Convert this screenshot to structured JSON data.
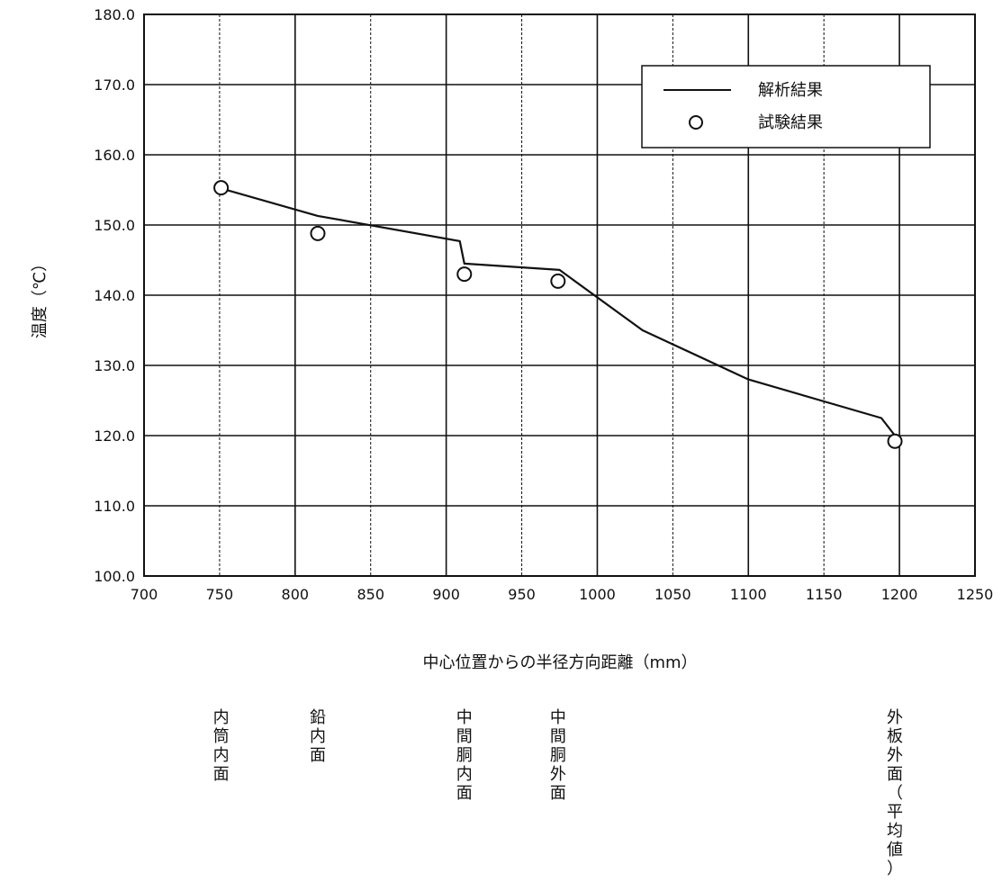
{
  "chart_data": {
    "type": "line",
    "ylabel": "温度（℃）",
    "xlabel": "中心位置からの半径方向距離（mm）",
    "xlim": [
      700,
      1250
    ],
    "ylim": [
      100.0,
      180.0
    ],
    "x_ticks": [
      "700",
      "750",
      "800",
      "850",
      "900",
      "950",
      "1000",
      "1050",
      "1100",
      "1150",
      "1200",
      "1250"
    ],
    "y_ticks": [
      "100.0",
      "110.0",
      "120.0",
      "130.0",
      "140.0",
      "150.0",
      "160.0",
      "170.0",
      "180.0"
    ],
    "grid": true,
    "legend_position": "top-right",
    "series": [
      {
        "name": "解析結果",
        "style": "line",
        "x": [
          751,
          815,
          909,
          912,
          975,
          1030,
          1100,
          1188,
          1197
        ],
        "y": [
          155.2,
          151.3,
          147.7,
          144.5,
          143.6,
          135.0,
          128.0,
          122.5,
          120.0
        ]
      },
      {
        "name": "試験結果",
        "style": "circle",
        "x": [
          751,
          815,
          912,
          974,
          1197
        ],
        "y": [
          155.3,
          148.8,
          143.0,
          142.0,
          119.2
        ]
      }
    ],
    "position_labels": [
      {
        "x": 751,
        "text": "内筒内面"
      },
      {
        "x": 815,
        "text": "鉛内面"
      },
      {
        "x": 912,
        "text": "中間胴内面"
      },
      {
        "x": 974,
        "text": "中間胴外面"
      },
      {
        "x": 1197,
        "text": "外板外面（平均値）"
      }
    ]
  },
  "colors": {
    "line": "#111111",
    "grid": "#111111",
    "background": "#ffffff"
  }
}
